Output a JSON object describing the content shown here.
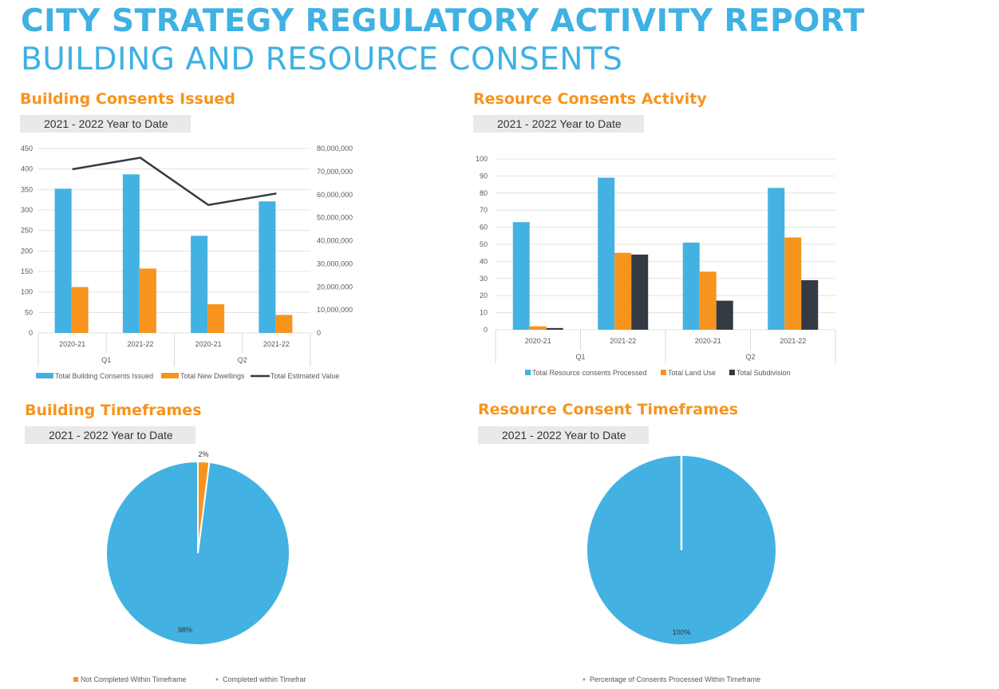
{
  "header": {
    "title": "CITY STRATEGY REGULATORY ACTIVITY REPORT",
    "subtitle": "BUILDING AND RESOURCE CONSENTS"
  },
  "colors": {
    "blue": "#43b2e2",
    "orange": "#f7941d",
    "dark": "#343a44",
    "title": "#3fb1e3"
  },
  "sections": {
    "building_consents": {
      "title": "Building Consents Issued",
      "period": "2021 - 2022 Year to Date"
    },
    "resource_consents": {
      "title": "Resource Consents Activity",
      "period": "2021 - 2022 Year to Date"
    },
    "building_timeframes": {
      "title": "Building Timeframes",
      "period": "2021 - 2022 Year to Date"
    },
    "resource_timeframes": {
      "title": "Resource Consent Timeframes",
      "period": "2021 - 2022 Year to Date"
    }
  },
  "chart_data": [
    {
      "type": "bar",
      "categories": [
        "2020-21",
        "2021-22",
        "2020-21",
        "2021-22"
      ],
      "groups": [
        {
          "label": "Q1",
          "span": 2
        },
        {
          "label": "Q2",
          "span": 2
        }
      ],
      "series": [
        {
          "name": "Total Building Consents Issued",
          "values": [
            352,
            387,
            237,
            321
          ],
          "axis": "left",
          "kind": "bar",
          "color": "#43b2e2"
        },
        {
          "name": "Total New Dwellings",
          "values": [
            112,
            157,
            70,
            44
          ],
          "axis": "left",
          "kind": "bar",
          "color": "#f7941d"
        },
        {
          "name": "Total Estimated Value",
          "values": [
            71000000,
            76000000,
            55500000,
            60500000
          ],
          "axis": "right",
          "kind": "line",
          "color": "#343a44"
        }
      ],
      "ylim": [
        0,
        450
      ],
      "yticks": [
        0,
        50,
        100,
        150,
        200,
        250,
        300,
        350,
        400,
        450
      ],
      "y2lim": [
        0,
        80000000
      ],
      "y2ticks": [
        "0",
        "10,000,000",
        "20,000,000",
        "30,000,000",
        "40,000,000",
        "50,000,000",
        "60,000,000",
        "70,000,000",
        "80,000,000"
      ],
      "grid": true,
      "legend": "bottom"
    },
    {
      "type": "bar",
      "categories": [
        "2020-21",
        "2021-22",
        "2020-21",
        "2021-22"
      ],
      "groups": [
        {
          "label": "Q1",
          "span": 2
        },
        {
          "label": "Q2",
          "span": 2
        }
      ],
      "series": [
        {
          "name": "Total Resource consents Processed",
          "values": [
            63,
            89,
            51,
            83
          ],
          "color": "#43b2e2"
        },
        {
          "name": "Total Land Use",
          "values": [
            2,
            45,
            34,
            54
          ],
          "color": "#f7941d"
        },
        {
          "name": "Total Subdivision",
          "values": [
            1,
            44,
            17,
            29
          ],
          "color": "#343a44"
        }
      ],
      "ylim": [
        0,
        100
      ],
      "yticks": [
        0,
        10,
        20,
        30,
        40,
        50,
        60,
        70,
        80,
        90,
        100
      ],
      "grid": true,
      "legend": "bottom"
    },
    {
      "type": "pie",
      "slices": [
        {
          "name": "Not Completed Within Timeframe",
          "value": 2,
          "label": "2%",
          "color": "#f7941d"
        },
        {
          "name": "Completed within Timefrar",
          "value": 98,
          "label": "98%",
          "color": "#43b2e2"
        }
      ],
      "legend": "bottom"
    },
    {
      "type": "pie",
      "slices": [
        {
          "name": "Percentage of Consents Processed Within Timeframe",
          "value": 100,
          "label": "100%",
          "color": "#43b2e2"
        }
      ],
      "legend": "bottom"
    }
  ]
}
